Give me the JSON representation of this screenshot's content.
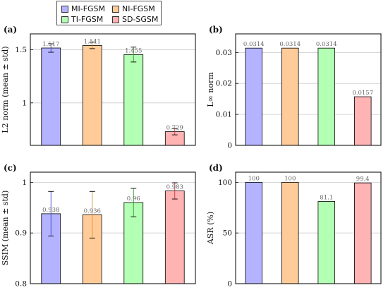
{
  "legend": [
    {
      "name": "MI-FGSM",
      "color": "#b3b3ff"
    },
    {
      "name": "NI-FGSM",
      "color": "#ffcc99"
    },
    {
      "name": "TI-FGSM",
      "color": "#b3ffb3"
    },
    {
      "name": "SD-SGSM",
      "color": "#ffb3b3"
    }
  ],
  "chart_data": [
    {
      "panel": "(a)",
      "type": "bar",
      "categories": [
        "MI-FGSM",
        "NI-FGSM",
        "TI-FGSM",
        "SD-SGSM"
      ],
      "values": [
        1.517,
        1.541,
        1.455,
        0.729
      ],
      "errors": [
        0.04,
        0.03,
        0.07,
        0.03
      ],
      "value_labels": [
        "1.517",
        "1.541",
        "1.455",
        "0.729"
      ],
      "ylabel": "L2 norm (mean ± std)",
      "ylim": [
        0.6,
        1.65
      ],
      "yticks": [
        1,
        1.5
      ],
      "ytick_labels": [
        "1",
        "1.5"
      ],
      "grid": true
    },
    {
      "panel": "(b)",
      "type": "bar",
      "categories": [
        "MI-FGSM",
        "NI-FGSM",
        "TI-FGSM",
        "SD-SGSM"
      ],
      "values": [
        0.0314,
        0.0314,
        0.0314,
        0.0157
      ],
      "errors": [
        0,
        0,
        0,
        0
      ],
      "value_labels": [
        "0.0314",
        "0.0314",
        "0.0314",
        "0.0157"
      ],
      "ylabel": "L∞ norm",
      "ylim": [
        0,
        0.036
      ],
      "yticks": [
        0,
        0.01,
        0.02,
        0.03
      ],
      "ytick_labels": [
        "0",
        "0.01",
        "0.02",
        "0.03"
      ],
      "grid": true
    },
    {
      "panel": "(c)",
      "type": "bar",
      "categories": [
        "MI-FGSM",
        "NI-FGSM",
        "TI-FGSM",
        "SD-SGSM"
      ],
      "values": [
        0.938,
        0.936,
        0.96,
        0.983
      ],
      "errors": [
        0.044,
        0.046,
        0.028,
        0.016
      ],
      "value_labels": [
        "0.938",
        "0.936",
        "0.96",
        "0.983"
      ],
      "ylabel": "SSIM (mean ± std)",
      "ylim": [
        0.8,
        1.02
      ],
      "yticks": [
        0.8,
        0.9,
        1
      ],
      "ytick_labels": [
        "0.8",
        "0.9",
        "1"
      ],
      "grid": true
    },
    {
      "panel": "(d)",
      "type": "bar",
      "categories": [
        "MI-FGSM",
        "NI-FGSM",
        "TI-FGSM",
        "SD-SGSM"
      ],
      "values": [
        100,
        100,
        81.1,
        99.4
      ],
      "errors": [
        0,
        0,
        0,
        0
      ],
      "value_labels": [
        "100",
        "100",
        "81.1",
        "99.4"
      ],
      "ylabel": "ASR (%)",
      "ylim": [
        0,
        110
      ],
      "yticks": [
        0,
        50,
        100
      ],
      "ytick_labels": [
        "0",
        "50",
        "100"
      ],
      "grid": true
    }
  ],
  "colors": {
    "bars": [
      "#b3b3ff",
      "#ffcc99",
      "#b3ffb3",
      "#ffb3b3"
    ],
    "errorbars": [
      "#4444cc",
      "#e08a2a",
      "#2e9e2e",
      "#cc3333"
    ],
    "grid": "#cccccc",
    "axis": "#000000"
  }
}
